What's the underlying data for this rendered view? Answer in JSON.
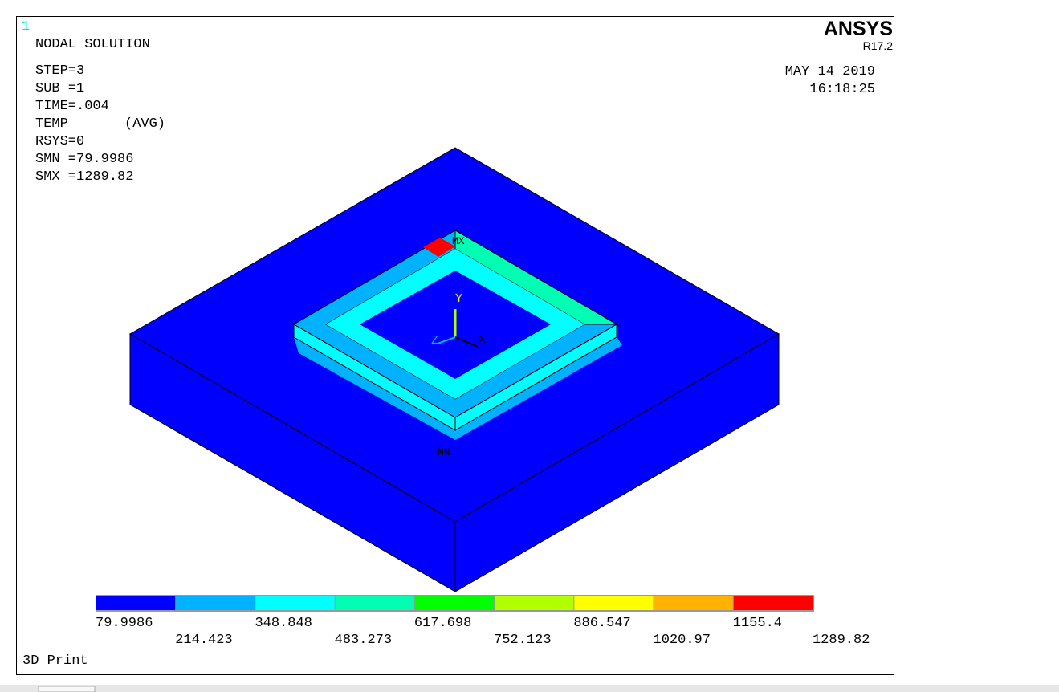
{
  "window": {
    "number": "1",
    "heading": "NODAL SOLUTION",
    "info": [
      "STEP=3",
      "SUB =1",
      "TIME=.004",
      "RSYS=0",
      "SMN =79.9986",
      "SMX =1289.82"
    ],
    "quantity": "TEMP",
    "averaging": "(AVG)",
    "brand": "ANSYS",
    "release": "R17.2",
    "date": "MAY 14 2019",
    "time": "16:18:25",
    "footer": "3D Print"
  },
  "model": {
    "max_marker": "MX",
    "min_marker": "MN",
    "axes": [
      "X",
      "Y",
      "Z"
    ]
  },
  "legend": {
    "colors": [
      "#0000ff",
      "#00b2ff",
      "#00ffff",
      "#00ffb2",
      "#00ff00",
      "#b2ff00",
      "#ffff00",
      "#ffb200",
      "#ff0000"
    ],
    "labels": [
      "79.9986",
      "214.423",
      "348.848",
      "483.273",
      "617.698",
      "752.123",
      "886.547",
      "1020.97",
      "1155.4",
      "1289.82"
    ]
  }
}
